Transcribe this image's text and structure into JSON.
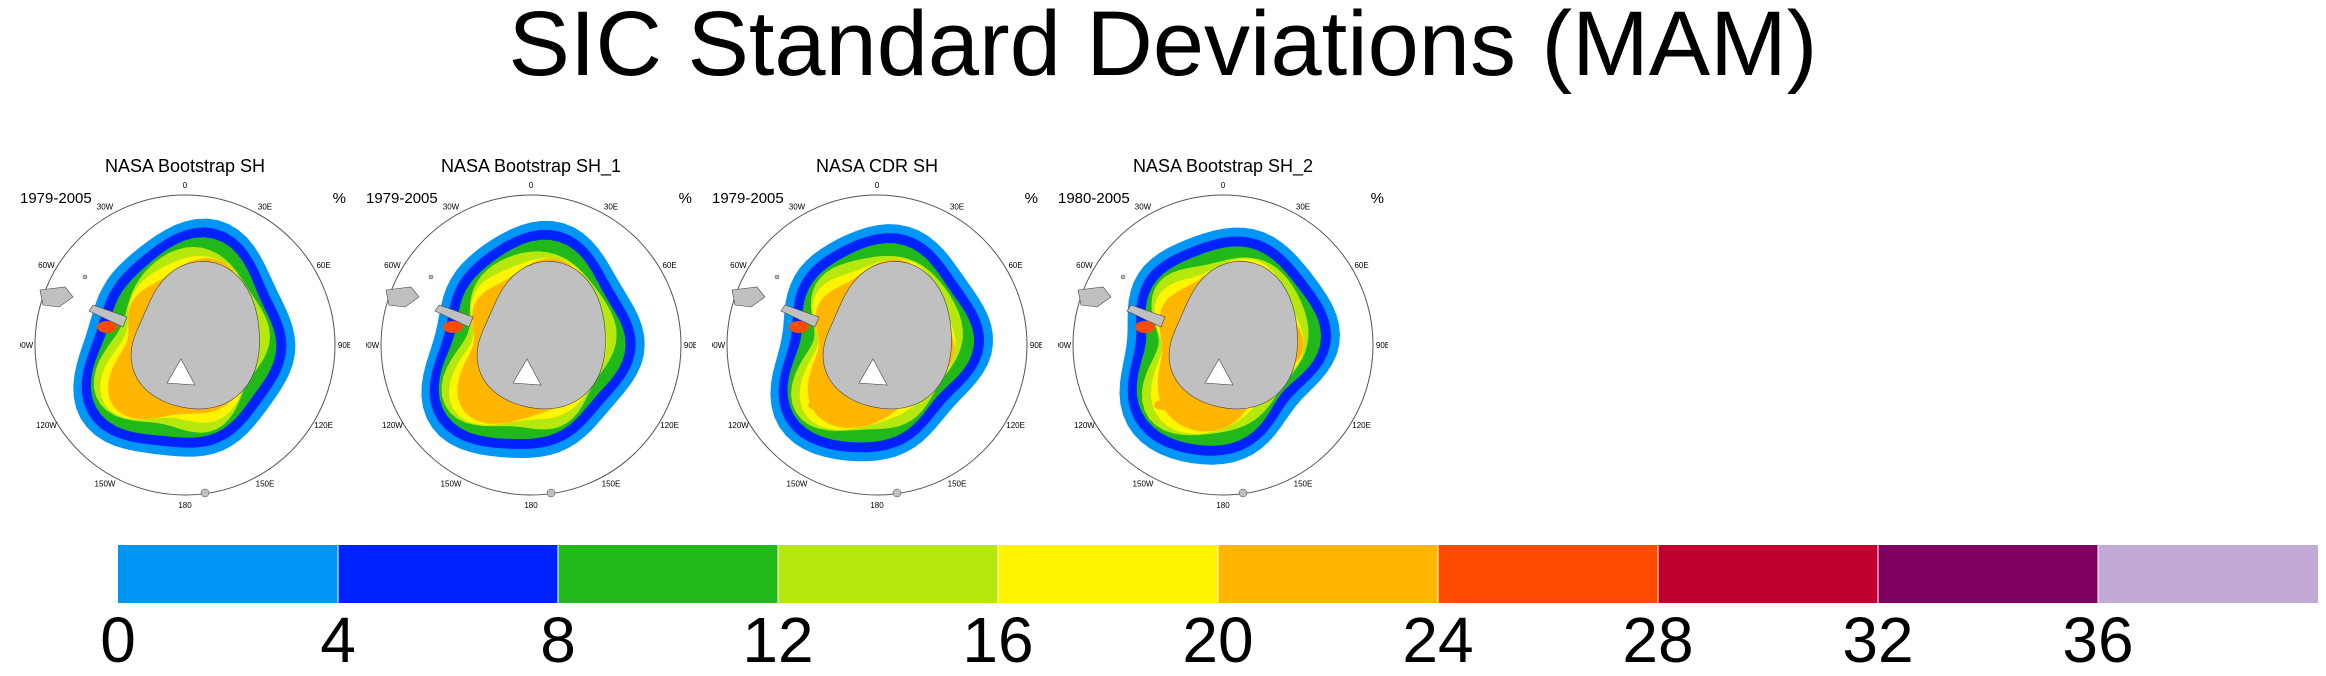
{
  "title": "SIC Standard Deviations (MAM)",
  "panels": [
    {
      "title": "NASA Bootstrap SH",
      "period": "1979-2005",
      "unit": "%"
    },
    {
      "title": "NASA Bootstrap SH_1",
      "period": "1979-2005",
      "unit": "%"
    },
    {
      "title": "NASA CDR SH",
      "period": "1979-2005",
      "unit": "%"
    },
    {
      "title": "NASA Bootstrap SH_2",
      "period": "1980-2005",
      "unit": "%"
    }
  ],
  "longitude_labels": [
    "0",
    "30E",
    "60E",
    "90E",
    "120E",
    "150E",
    "180",
    "150W",
    "120W",
    "90W",
    "60W",
    "30W"
  ],
  "colorbar": {
    "labels": [
      "0",
      "4",
      "8",
      "12",
      "16",
      "20",
      "24",
      "28",
      "32",
      "36"
    ],
    "colors": [
      "#0096f5",
      "#0022ff",
      "#21b91a",
      "#b7e80e",
      "#fff500",
      "#ffb600",
      "#ff4b00",
      "#c0002e",
      "#7f0061",
      "#c3a9d6"
    ]
  },
  "land_color": "#c0c0c0"
}
